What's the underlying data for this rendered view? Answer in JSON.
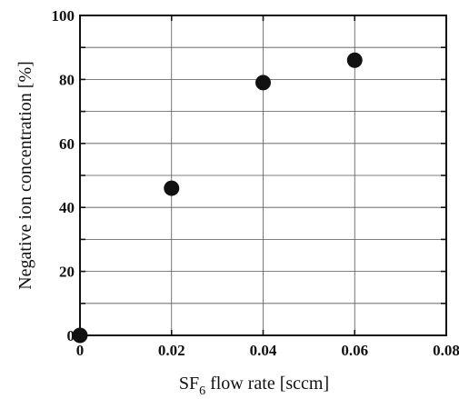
{
  "chart_data": {
    "type": "scatter",
    "title": "",
    "xlabel_main": "SF",
    "xlabel_sub": "6",
    "xlabel_rest": " flow rate [sccm]",
    "ylabel": "Negative ion concentration [%]",
    "xlim": [
      0,
      0.08
    ],
    "ylim": [
      0,
      100
    ],
    "x_ticks": [
      0,
      0.02,
      0.04,
      0.06,
      0.08
    ],
    "x_tick_labels": [
      "0",
      "0.02",
      "0.04",
      "0.06",
      "0.08"
    ],
    "y_ticks": [
      0,
      20,
      40,
      60,
      80,
      100
    ],
    "y_tick_labels": [
      "0",
      "20",
      "40",
      "60",
      "80",
      "100"
    ],
    "y_minor_step": 10,
    "grid": true,
    "legend": "none",
    "series": [
      {
        "x": [
          0,
          0.02,
          0.04,
          0.06
        ],
        "y": [
          0,
          46,
          79,
          86
        ]
      }
    ],
    "colors": {
      "points": "#111111",
      "grid": "#555555",
      "frame": "#111111"
    }
  }
}
